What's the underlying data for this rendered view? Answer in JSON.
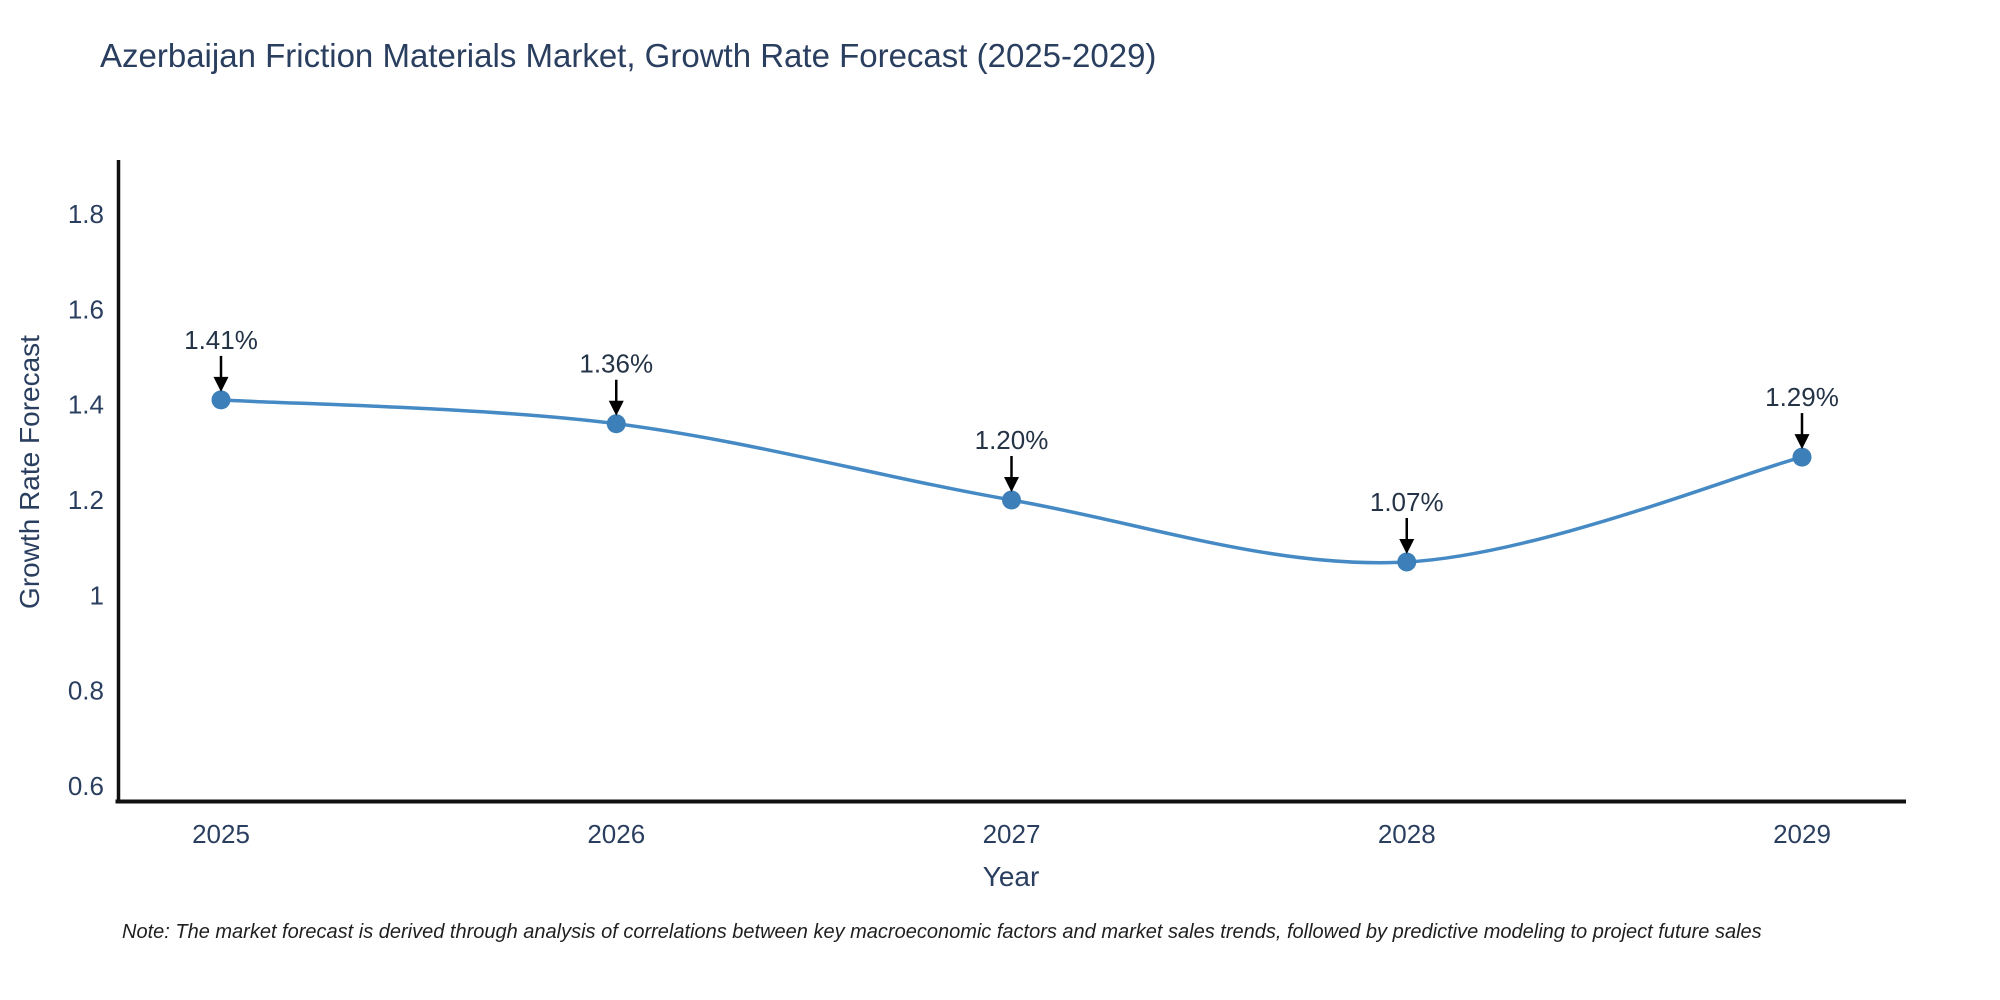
{
  "header": {
    "title": "Azerbaijan Friction Materials Market, Growth Rate Forecast (2025-2029)"
  },
  "chart_data": {
    "type": "line",
    "line_shape": "spline",
    "x": [
      2025,
      2026,
      2027,
      2028,
      2029
    ],
    "values": [
      1.41,
      1.36,
      1.2,
      1.07,
      1.29
    ],
    "point_labels": [
      "1.41%",
      "1.36%",
      "1.20%",
      "1.07%",
      "1.29%"
    ],
    "title": "Azerbaijan Friction Materials Market, Growth Rate Forecast (2025-2029)",
    "xlabel": "Year",
    "ylabel": "Growth Rate Forecast",
    "xtick_labels": [
      "2025",
      "2026",
      "2027",
      "2028",
      "2029"
    ],
    "yticks": [
      0.6,
      0.8,
      1.0,
      1.2,
      1.4,
      1.6,
      1.8
    ],
    "ytick_labels": [
      "0.6",
      "0.8",
      "1",
      "1.2",
      "1.4",
      "1.6",
      "1.8"
    ],
    "ylim": [
      0.57,
      1.94
    ],
    "grid": false,
    "legend": "none",
    "markers": true,
    "annotations": "value labels with down arrows above each point",
    "colors": {
      "line": "#458ac4",
      "marker": "#3d7fb8",
      "axis": "#111111",
      "text": "#2a3f5f",
      "annotation_text": "#253347",
      "arrow": "#000000",
      "background": "#ffffff"
    }
  },
  "footer": {
    "note": "Note: The market forecast is derived through analysis of correlations between key macroeconomic factors and market sales trends, followed by predictive modeling to project future sales"
  }
}
